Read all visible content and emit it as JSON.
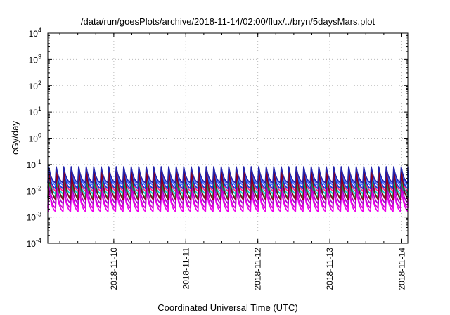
{
  "chart_data": {
    "type": "line",
    "title": "/data/run/goesPlots/archive/2018-11-14/02:00/flux/../bryn/5daysMars.plot",
    "xlabel": "Coordinated Universal Time (UTC)",
    "ylabel": "cGy/day",
    "y_scale": "log",
    "ylim": [
      0.0001,
      10000
    ],
    "y_ticks": [
      {
        "value": 0.0001,
        "base": "10",
        "exp": "-4"
      },
      {
        "value": 0.001,
        "base": "10",
        "exp": "-3"
      },
      {
        "value": 0.01,
        "base": "10",
        "exp": "-2"
      },
      {
        "value": 0.1,
        "base": "10",
        "exp": "-1"
      },
      {
        "value": 1,
        "base": "10",
        "exp": "0"
      },
      {
        "value": 10,
        "base": "10",
        "exp": "1"
      },
      {
        "value": 100,
        "base": "10",
        "exp": "2"
      },
      {
        "value": 1000,
        "base": "10",
        "exp": "3"
      },
      {
        "value": 10000,
        "base": "10",
        "exp": "4"
      }
    ],
    "xlim": [
      "2018-11-09 02:00",
      "2018-11-14 02:00"
    ],
    "x_ticks": [
      {
        "value": "2018-11-10 00:00",
        "label": "2018-11-10"
      },
      {
        "value": "2018-11-11 00:00",
        "label": "2018-11-11"
      },
      {
        "value": "2018-11-12 00:00",
        "label": "2018-11-12"
      },
      {
        "value": "2018-11-13 00:00",
        "label": "2018-11-13"
      },
      {
        "value": "2018-11-14 00:00",
        "label": "2018-11-14"
      }
    ],
    "grid": true,
    "cycle_count": 48,
    "series": [
      {
        "color": "#cc00cc",
        "peak": 0.014,
        "trough": 0.0022
      },
      {
        "color": "#ee00ee",
        "peak": 0.011,
        "trough": 0.0016
      },
      {
        "color": "#aa00cc",
        "peak": 0.018,
        "trough": 0.0032
      },
      {
        "color": "#00aa44",
        "peak": 0.028,
        "trough": 0.0055
      },
      {
        "color": "#00cccc",
        "peak": 0.036,
        "trough": 0.0075
      },
      {
        "color": "#ff2288",
        "peak": 0.045,
        "trough": 0.0095
      },
      {
        "color": "#0044dd",
        "peak": 0.06,
        "trough": 0.012
      },
      {
        "color": "#4466ff",
        "peak": 0.075,
        "trough": 0.016
      },
      {
        "color": "#880022",
        "peak": 0.05,
        "trough": 0.0045
      },
      {
        "color": "#2222aa",
        "peak": 0.082,
        "trough": 0.02
      }
    ]
  }
}
